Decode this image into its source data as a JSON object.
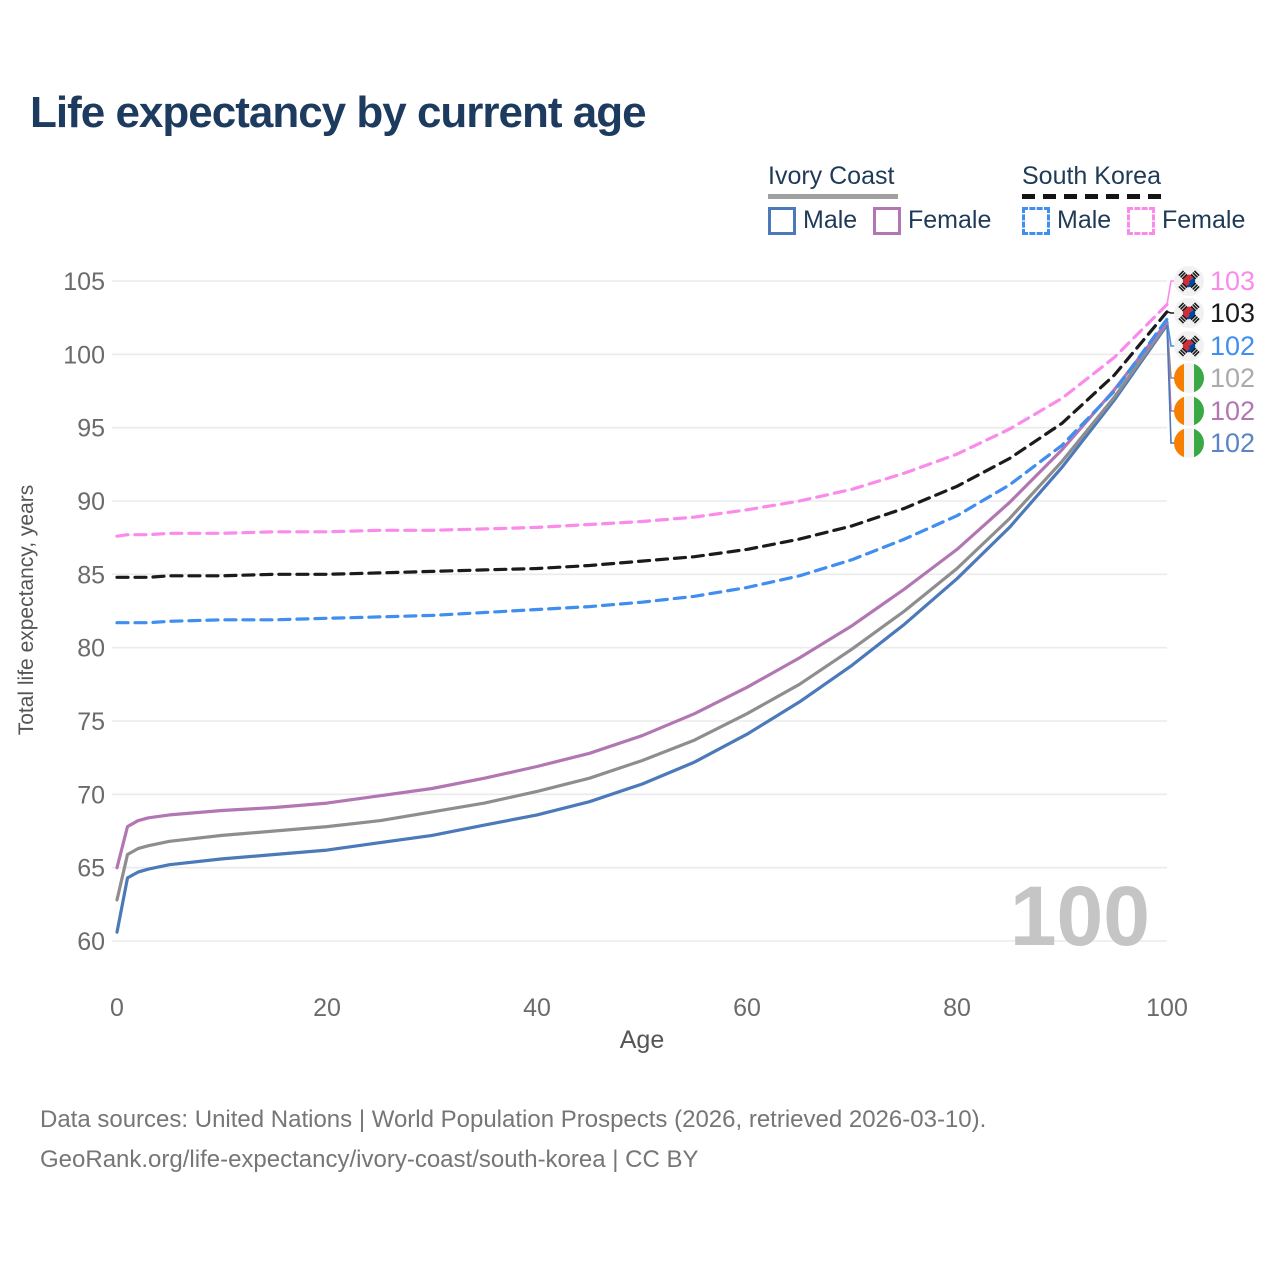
{
  "title": "Life expectancy by current age",
  "legend": {
    "groups": [
      {
        "name": "Ivory Coast",
        "line_style": "solid",
        "line_color": "#a0a0a0",
        "items": [
          {
            "label": "Male",
            "color": "#4b79b9",
            "style": "solid"
          },
          {
            "label": "Female",
            "color": "#b277b2",
            "style": "solid"
          }
        ]
      },
      {
        "name": "South Korea",
        "line_style": "dashed",
        "line_color": "#141414",
        "items": [
          {
            "label": "Male",
            "color": "#3f8ef0",
            "style": "dashed"
          },
          {
            "label": "Female",
            "color": "#fb8beb",
            "style": "dashed"
          }
        ]
      }
    ]
  },
  "y_axis": {
    "title": "Total life expectancy, years",
    "ticks": [
      105,
      100,
      95,
      90,
      85,
      80,
      75,
      70,
      65,
      60
    ],
    "range": [
      60,
      105
    ]
  },
  "x_axis": {
    "title": "Age",
    "ticks": [
      0,
      20,
      40,
      60,
      80,
      100
    ],
    "range": [
      0,
      100
    ]
  },
  "chart_data": {
    "type": "line",
    "title": "Life expectancy by current age",
    "xlabel": "Age",
    "ylabel": "Total life expectancy, years",
    "xlim": [
      0,
      100
    ],
    "ylim": [
      60,
      105
    ],
    "grid": "horizontal",
    "legend_position": "top-right",
    "x": [
      0,
      1,
      2,
      3,
      5,
      10,
      15,
      20,
      25,
      30,
      35,
      40,
      45,
      50,
      55,
      60,
      65,
      70,
      75,
      80,
      85,
      90,
      95,
      100
    ],
    "series": [
      {
        "name": "Ivory Coast Male",
        "key": "ic_male",
        "style": "solid",
        "color": "#4b79b9",
        "values": [
          60.6,
          64.3,
          64.7,
          64.9,
          65.2,
          65.6,
          65.9,
          66.2,
          66.7,
          67.2,
          67.9,
          68.6,
          69.5,
          70.7,
          72.2,
          74.1,
          76.3,
          78.8,
          81.6,
          84.7,
          88.2,
          92.3,
          96.9,
          102.0
        ]
      },
      {
        "name": "Ivory Coast Total",
        "key": "ic_total",
        "style": "solid",
        "color": "#8e8e8e",
        "values": [
          62.8,
          65.9,
          66.3,
          66.5,
          66.8,
          67.2,
          67.5,
          67.8,
          68.2,
          68.8,
          69.4,
          70.2,
          71.1,
          72.3,
          73.7,
          75.5,
          77.5,
          79.9,
          82.5,
          85.4,
          88.8,
          92.7,
          97.1,
          102.1
        ]
      },
      {
        "name": "Ivory Coast Female",
        "key": "ic_female",
        "style": "solid",
        "color": "#b277b2",
        "values": [
          65.0,
          67.8,
          68.2,
          68.4,
          68.6,
          68.9,
          69.1,
          69.4,
          69.9,
          70.4,
          71.1,
          71.9,
          72.8,
          74.0,
          75.5,
          77.3,
          79.3,
          81.5,
          84.0,
          86.7,
          89.9,
          93.5,
          97.6,
          102.2
        ]
      },
      {
        "name": "South Korea Male",
        "key": "sk_male",
        "style": "dashed",
        "color": "#3f8ef0",
        "values": [
          81.7,
          81.7,
          81.7,
          81.7,
          81.8,
          81.9,
          81.9,
          82.0,
          82.1,
          82.2,
          82.4,
          82.6,
          82.8,
          83.1,
          83.5,
          84.1,
          84.9,
          86.0,
          87.4,
          89.0,
          91.1,
          93.8,
          97.5,
          102.4
        ]
      },
      {
        "name": "South Korea Total",
        "key": "sk_total",
        "style": "dashed",
        "color": "#1b1b1b",
        "values": [
          84.8,
          84.8,
          84.8,
          84.8,
          84.9,
          84.9,
          85.0,
          85.0,
          85.1,
          85.2,
          85.3,
          85.4,
          85.6,
          85.9,
          86.2,
          86.7,
          87.4,
          88.3,
          89.5,
          91.0,
          92.9,
          95.3,
          98.6,
          102.9
        ]
      },
      {
        "name": "South Korea Female",
        "key": "sk_female",
        "style": "dashed",
        "color": "#fb8beb",
        "values": [
          87.6,
          87.7,
          87.7,
          87.7,
          87.8,
          87.8,
          87.9,
          87.9,
          88.0,
          88.0,
          88.1,
          88.2,
          88.4,
          88.6,
          88.9,
          89.4,
          90.0,
          90.8,
          91.9,
          93.2,
          94.9,
          97.0,
          99.8,
          103.4
        ]
      }
    ]
  },
  "end_labels": [
    {
      "value": "103",
      "series": "sk_female",
      "flag": "south-korea",
      "text_color": "#fb8beb"
    },
    {
      "value": "103",
      "series": "sk_total",
      "flag": "south-korea",
      "text_color": "#1b1b1b"
    },
    {
      "value": "102",
      "series": "sk_male",
      "flag": "south-korea",
      "text_color": "#3f8ef0"
    },
    {
      "value": "102",
      "series": "ic_total",
      "flag": "ivory-coast",
      "text_color": "#ababab"
    },
    {
      "value": "102",
      "series": "ic_female",
      "flag": "ivory-coast",
      "text_color": "#b277b2"
    },
    {
      "value": "102",
      "series": "ic_male",
      "flag": "ivory-coast",
      "text_color": "#5b84c4"
    }
  ],
  "age_indicator": "100",
  "footer": {
    "line1": "Data sources: United Nations | World Population Prospects (2026, retrieved 2026-03-10).",
    "line2": "GeoRank.org/life-expectancy/ivory-coast/south-korea | CC BY"
  }
}
